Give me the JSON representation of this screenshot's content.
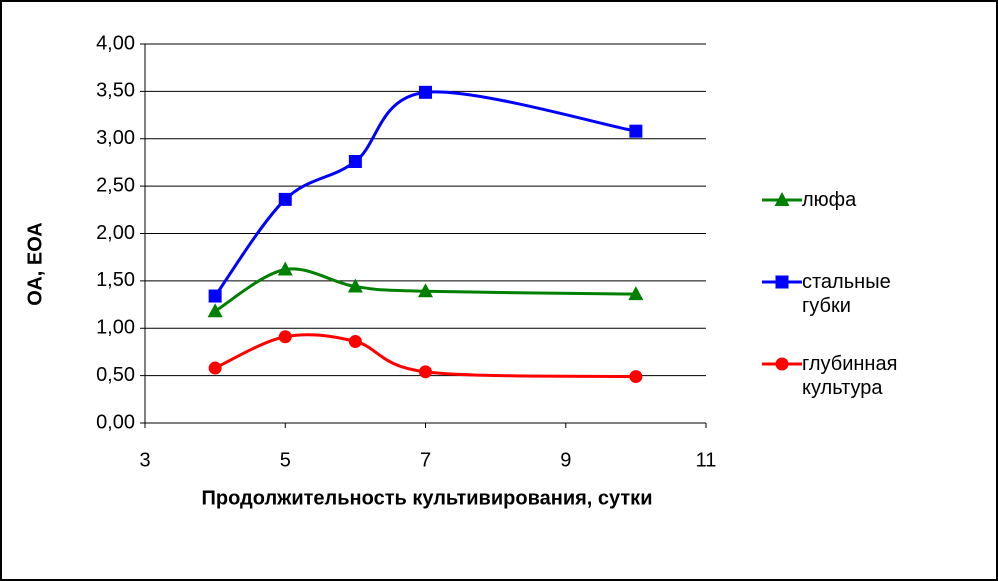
{
  "chart_data": {
    "type": "line",
    "x_label": "Продолжительность культивирования, сутки",
    "y_label": "ОА, ЕОА",
    "x": [
      4,
      5,
      6,
      7,
      10
    ],
    "series": [
      {
        "name": "люфа",
        "color": "#008000",
        "marker": "triangle",
        "values": [
          1.18,
          1.62,
          1.44,
          1.39,
          1.36
        ]
      },
      {
        "name": "стальные губки",
        "color": "#0000ff",
        "marker": "square",
        "values": [
          1.34,
          2.36,
          2.76,
          3.49,
          3.08
        ]
      },
      {
        "name": "глубинная культура",
        "color": "#ff0000",
        "marker": "circle",
        "values": [
          0.58,
          0.91,
          0.86,
          0.54,
          0.49
        ]
      }
    ],
    "xlim": [
      3,
      11
    ],
    "xticks": [
      3,
      5,
      7,
      9,
      11
    ],
    "ylim": [
      0,
      4
    ],
    "yticks": [
      {
        "value": 0,
        "label": "0,00"
      },
      {
        "value": 0.5,
        "label": "0,50"
      },
      {
        "value": 1,
        "label": "1,00"
      },
      {
        "value": 1.5,
        "label": "1,50"
      },
      {
        "value": 2,
        "label": "2,00"
      },
      {
        "value": 2.5,
        "label": "2,50"
      },
      {
        "value": 3,
        "label": "3,00"
      },
      {
        "value": 3.5,
        "label": "3,50"
      },
      {
        "value": 4,
        "label": "4,00"
      }
    ],
    "grid": true,
    "legend": "right"
  }
}
